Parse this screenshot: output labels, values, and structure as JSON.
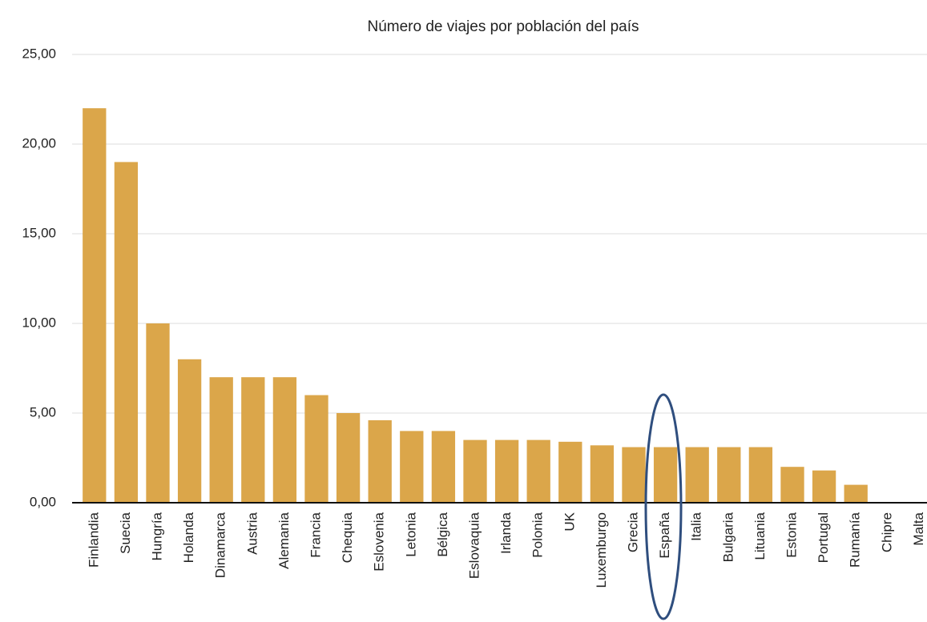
{
  "chart_data": {
    "type": "bar",
    "title": "Número de viajes por población del país",
    "categories": [
      "Finlandia",
      "Suecia",
      "Hungría",
      "Holanda",
      "Dinamarca",
      "Austria",
      "Alemania",
      "Francia",
      "Chequia",
      "Eslovenia",
      "Letonia",
      "Bélgica",
      "Eslovaquia",
      "Irlanda",
      "Polonia",
      "UK",
      "Luxemburgo",
      "Grecia",
      "España",
      "Italia",
      "Bulgaria",
      "Lituania",
      "Estonia",
      "Portugal",
      "Rumanía",
      "Chipre",
      "Malta"
    ],
    "values": [
      22,
      19,
      10,
      8,
      7,
      7,
      7,
      6,
      5,
      4.6,
      4,
      4,
      3.5,
      3.5,
      3.5,
      3.4,
      3.2,
      3.1,
      3.1,
      3.1,
      3.1,
      3.1,
      2,
      1.8,
      1,
      0,
      0
    ],
    "color": "#dba64a",
    "ylim": [
      0,
      25
    ],
    "yticks": [
      {
        "value": 0,
        "label": "0,00"
      },
      {
        "value": 5,
        "label": "5,00"
      },
      {
        "value": 10,
        "label": "10,00"
      },
      {
        "value": 15,
        "label": "15,00"
      },
      {
        "value": 20,
        "label": "20,00"
      },
      {
        "value": 25,
        "label": "25,00"
      }
    ],
    "grid": true
  }
}
